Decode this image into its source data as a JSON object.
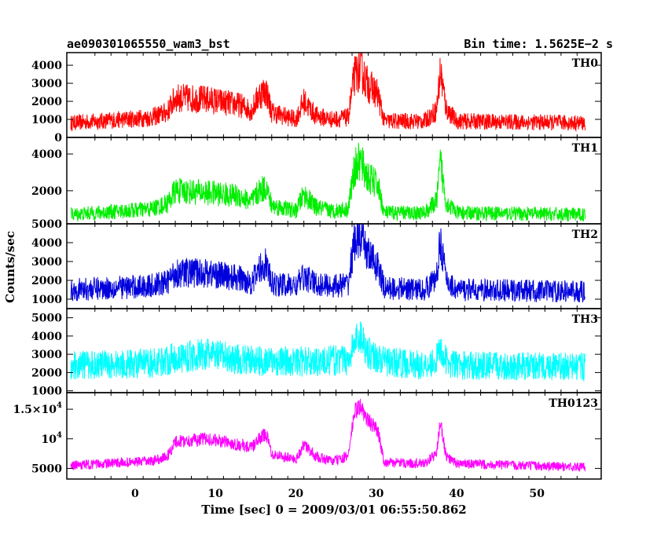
{
  "chart_data": {
    "type": "line",
    "title": "ae090301065550_wam3_bst",
    "subtitle": "Bin time: 1.5625E−2 s",
    "xlabel": "Time [sec] 0 = 2009/03/01 06:55:50.862",
    "ylabel": "Counts/sec",
    "xlim": [
      -8.5,
      58
    ],
    "x_ticks": [
      "0",
      "10",
      "20",
      "30",
      "40",
      "50"
    ],
    "x_tick_values": [
      0,
      10,
      20,
      30,
      40,
      50
    ],
    "data_x_range": [
      -8,
      56
    ],
    "bin_time_s": 0.015625,
    "grid": false,
    "legend": "none",
    "panels": [
      {
        "name": "TH0",
        "color": "#ff0000",
        "ylim": [
          0,
          4700
        ],
        "y_ticks": [
          {
            "value": 0,
            "label": "0"
          },
          {
            "value": 1000,
            "label": "1000"
          },
          {
            "value": 2000,
            "label": "2000"
          },
          {
            "value": 3000,
            "label": "3000"
          },
          {
            "value": 4000,
            "label": "4000"
          }
        ],
        "profile": [
          [
            -8,
            800
          ],
          [
            2,
            1100
          ],
          [
            4,
            1400
          ],
          [
            5,
            2200
          ],
          [
            9,
            2100
          ],
          [
            13,
            1800
          ],
          [
            14.5,
            1500
          ],
          [
            15.5,
            2400
          ],
          [
            16.3,
            2600
          ],
          [
            17,
            1400
          ],
          [
            20,
            1000
          ],
          [
            21,
            2000
          ],
          [
            22.5,
            1200
          ],
          [
            24.5,
            1000
          ],
          [
            26.5,
            1100
          ],
          [
            27.3,
            3400
          ],
          [
            28,
            3800
          ],
          [
            29,
            2900
          ],
          [
            30.2,
            2400
          ],
          [
            31,
            900
          ],
          [
            36,
            900
          ],
          [
            37.5,
            1500
          ],
          [
            38,
            3700
          ],
          [
            38.7,
            1600
          ],
          [
            40,
            900
          ],
          [
            56,
            800
          ]
        ],
        "noise": 300
      },
      {
        "name": "TH1",
        "color": "#00ee00",
        "ylim": [
          200,
          4900
        ],
        "y_ticks": [
          {
            "value": 2000,
            "label": "2000"
          },
          {
            "value": 4000,
            "label": "4000"
          }
        ],
        "profile": [
          [
            -8,
            700
          ],
          [
            2,
            1000
          ],
          [
            4,
            1300
          ],
          [
            5,
            2000
          ],
          [
            9,
            1900
          ],
          [
            13,
            1700
          ],
          [
            14.5,
            1400
          ],
          [
            15.5,
            2000
          ],
          [
            16.3,
            2200
          ],
          [
            17,
            1200
          ],
          [
            20,
            900
          ],
          [
            21,
            1800
          ],
          [
            22.5,
            1100
          ],
          [
            24.5,
            900
          ],
          [
            26.5,
            1000
          ],
          [
            27.3,
            3200
          ],
          [
            28,
            3600
          ],
          [
            29,
            2700
          ],
          [
            30.2,
            2300
          ],
          [
            31,
            800
          ],
          [
            36,
            800
          ],
          [
            37.5,
            1400
          ],
          [
            38,
            3500
          ],
          [
            38.7,
            1400
          ],
          [
            40,
            800
          ],
          [
            56,
            700
          ]
        ],
        "noise": 260
      },
      {
        "name": "TH2",
        "color": "#0000dd",
        "ylim": [
          500,
          5000
        ],
        "y_ticks": [
          {
            "value": 1000,
            "label": "1000"
          },
          {
            "value": 2000,
            "label": "2000"
          },
          {
            "value": 3000,
            "label": "3000"
          },
          {
            "value": 4000,
            "label": "4000"
          },
          {
            "value": 5000,
            "label": "5000"
          }
        ],
        "profile": [
          [
            -8,
            1500
          ],
          [
            2,
            1700
          ],
          [
            4,
            1900
          ],
          [
            5,
            2400
          ],
          [
            9,
            2400
          ],
          [
            13,
            2100
          ],
          [
            14.5,
            1900
          ],
          [
            15.5,
            2600
          ],
          [
            16.3,
            2900
          ],
          [
            17,
            1800
          ],
          [
            20,
            1700
          ],
          [
            21,
            2200
          ],
          [
            22.5,
            1800
          ],
          [
            24.5,
            1700
          ],
          [
            26.5,
            1800
          ],
          [
            27.3,
            4100
          ],
          [
            28,
            4300
          ],
          [
            29,
            3400
          ],
          [
            30.2,
            2700
          ],
          [
            31,
            1600
          ],
          [
            36,
            1500
          ],
          [
            37.5,
            2100
          ],
          [
            38,
            4200
          ],
          [
            38.7,
            2000
          ],
          [
            40,
            1500
          ],
          [
            56,
            1400
          ]
        ],
        "noise": 420
      },
      {
        "name": "TH3",
        "color": "#00ffff",
        "ylim": [
          900,
          5500
        ],
        "y_ticks": [
          {
            "value": 1000,
            "label": "1000"
          },
          {
            "value": 2000,
            "label": "2000"
          },
          {
            "value": 3000,
            "label": "3000"
          },
          {
            "value": 4000,
            "label": "4000"
          },
          {
            "value": 5000,
            "label": "5000"
          }
        ],
        "profile": [
          [
            -8,
            2400
          ],
          [
            2,
            2500
          ],
          [
            5,
            2800
          ],
          [
            9,
            3000
          ],
          [
            13,
            2700
          ],
          [
            17,
            2600
          ],
          [
            22,
            2600
          ],
          [
            26.5,
            2700
          ],
          [
            27.3,
            3600
          ],
          [
            28,
            4100
          ],
          [
            29,
            3100
          ],
          [
            31,
            2600
          ],
          [
            36,
            2400
          ],
          [
            37.5,
            2700
          ],
          [
            38,
            3300
          ],
          [
            38.7,
            2600
          ],
          [
            40,
            2400
          ],
          [
            56,
            2300
          ]
        ],
        "noise": 550
      },
      {
        "name": "TH0123",
        "color": "#ff00ff",
        "ylim": [
          3200,
          17800
        ],
        "y_ticks": [
          {
            "value": 5000,
            "label": "5000"
          },
          {
            "value": 10000,
            "label": "10",
            "exponent": "4"
          },
          {
            "value": 15000,
            "label": "1.5×10",
            "exponent": "4"
          }
        ],
        "profile": [
          [
            -8,
            5500
          ],
          [
            2,
            6200
          ],
          [
            4,
            7000
          ],
          [
            5,
            9500
          ],
          [
            9,
            10000
          ],
          [
            13,
            9000
          ],
          [
            14.5,
            8500
          ],
          [
            15.5,
            10000
          ],
          [
            16.3,
            11000
          ],
          [
            17,
            7500
          ],
          [
            20,
            6500
          ],
          [
            21,
            9000
          ],
          [
            22.5,
            7000
          ],
          [
            24.5,
            6200
          ],
          [
            26.5,
            7000
          ],
          [
            27.3,
            14500
          ],
          [
            28,
            15500
          ],
          [
            29,
            13000
          ],
          [
            30.2,
            11500
          ],
          [
            31,
            6000
          ],
          [
            36,
            5800
          ],
          [
            37.5,
            7500
          ],
          [
            38,
            13000
          ],
          [
            38.7,
            7000
          ],
          [
            40,
            5800
          ],
          [
            56,
            5200
          ]
        ],
        "noise": 550
      }
    ]
  }
}
